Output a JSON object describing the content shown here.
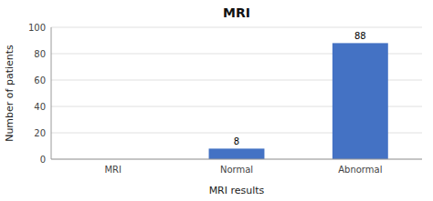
{
  "chart_data": {
    "type": "bar",
    "title": "MRI",
    "categories": [
      "MRI",
      "Normal",
      "Abnormal"
    ],
    "values": [
      0,
      8,
      88
    ],
    "value_labels": [
      null,
      "8",
      "88"
    ],
    "data_labels": true,
    "color": "#4472C4",
    "xlabel": "MRI results",
    "ylabel": "Number of patients",
    "ylim": [
      0,
      100
    ],
    "yticks": [
      0,
      20,
      40,
      60,
      80,
      100
    ],
    "grid": true
  }
}
